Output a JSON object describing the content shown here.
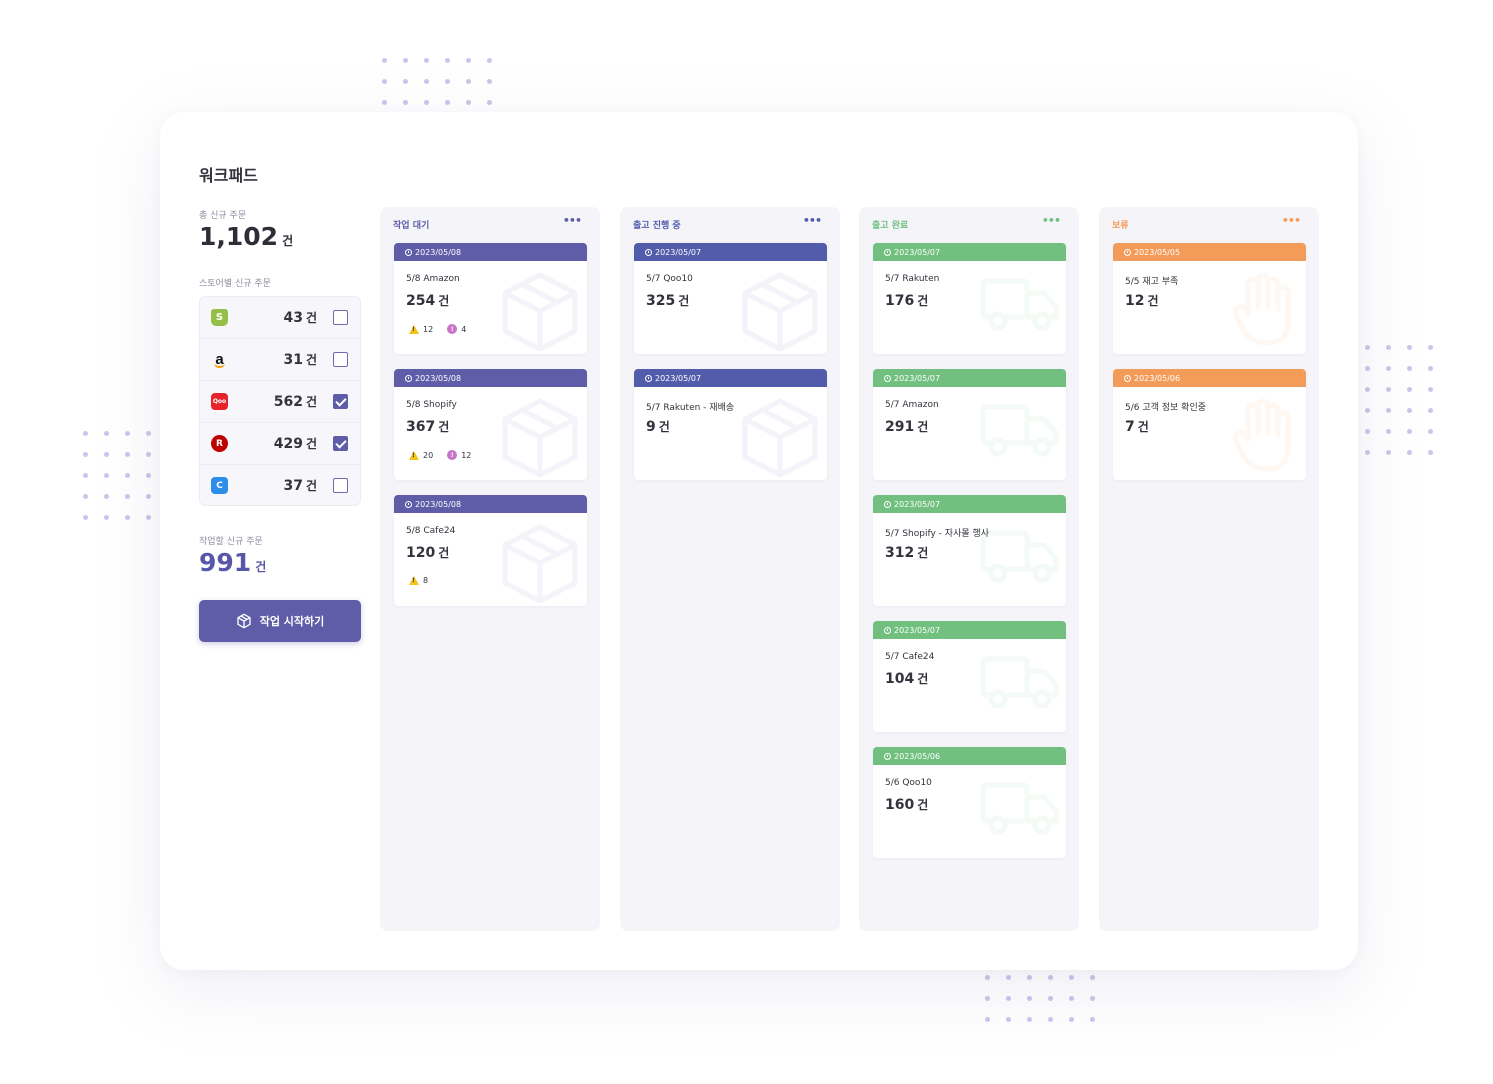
{
  "page": {
    "title": "워크패드"
  },
  "summary": {
    "total_label": "총 신규 주문",
    "total_value": "1,102",
    "unit": "건"
  },
  "stores": {
    "label": "스토어별 신규 주문",
    "items": [
      {
        "name": "Shopify",
        "icon": "shopify-icon",
        "logo_text": "S",
        "count": "43",
        "unit": "건",
        "checked": false
      },
      {
        "name": "Amazon",
        "icon": "amazon-icon",
        "logo_text": "a",
        "count": "31",
        "unit": "건",
        "checked": false
      },
      {
        "name": "Qoo10",
        "icon": "qoo10-icon",
        "logo_text": "Qoo",
        "count": "562",
        "unit": "건",
        "checked": true
      },
      {
        "name": "Rakuten",
        "icon": "rakuten-icon",
        "logo_text": "R",
        "count": "429",
        "unit": "건",
        "checked": true
      },
      {
        "name": "Cafe24",
        "icon": "cafe24-icon",
        "logo_text": "C",
        "count": "37",
        "unit": "건",
        "checked": false
      }
    ]
  },
  "work": {
    "label": "작업할 신규 주문",
    "value": "991",
    "unit": "건"
  },
  "start_button": {
    "label": "작업 시작하기",
    "icon": "box-icon"
  },
  "colors": {
    "purple": "#5f5da8",
    "indigo": "#535cab",
    "green": "#71c07f",
    "orange": "#f39c5a"
  },
  "columns": [
    {
      "title": "작업 대기",
      "menu": "•••",
      "theme": "purple",
      "color": "#5f5da8",
      "watermark_icon": "box-icon",
      "cards": [
        {
          "date": "2023/05/08",
          "store": "5/8 Amazon",
          "count": "254",
          "unit": "건",
          "warnings": "12",
          "alerts": "4"
        },
        {
          "date": "2023/05/08",
          "store": "5/8 Shopify",
          "count": "367",
          "unit": "건",
          "warnings": "20",
          "alerts": "12"
        },
        {
          "date": "2023/05/08",
          "store": "5/8 Cafe24",
          "count": "120",
          "unit": "건",
          "warnings": "8"
        }
      ]
    },
    {
      "title": "출고 진행 중",
      "menu": "•••",
      "theme": "indigo",
      "color": "#535cab",
      "watermark_icon": "box-icon",
      "cards": [
        {
          "date": "2023/05/07",
          "store": "5/7 Qoo10",
          "count": "325",
          "unit": "건"
        },
        {
          "date": "2023/05/07",
          "store": "5/7 Rakuten - 재배송",
          "count": "9",
          "unit": "건"
        }
      ]
    },
    {
      "title": "출고 완료",
      "menu": "•••",
      "theme": "green",
      "color": "#71c07f",
      "watermark_icon": "truck-icon",
      "cards": [
        {
          "date": "2023/05/07",
          "store": "5/7 Rakuten",
          "count": "176",
          "unit": "건"
        },
        {
          "date": "2023/05/07",
          "store": "5/7 Amazon",
          "count": "291",
          "unit": "건"
        },
        {
          "date": "2023/05/07",
          "store": "5/7 Shopify - 자사몰 행사",
          "count": "312",
          "unit": "건"
        },
        {
          "date": "2023/05/07",
          "store": "5/7 Cafe24",
          "count": "104",
          "unit": "건"
        },
        {
          "date": "2023/05/06",
          "store": "5/6 Qoo10",
          "count": "160",
          "unit": "건"
        }
      ]
    },
    {
      "title": "보류",
      "menu": "•••",
      "theme": "orange",
      "color": "#f39c5a",
      "watermark_icon": "hand-icon",
      "cards": [
        {
          "date": "2023/05/05",
          "store": "5/5 재고 부족",
          "count": "12",
          "unit": "건"
        },
        {
          "date": "2023/05/06",
          "store": "5/6 고객 정보 확인중",
          "count": "7",
          "unit": "건"
        }
      ]
    }
  ]
}
